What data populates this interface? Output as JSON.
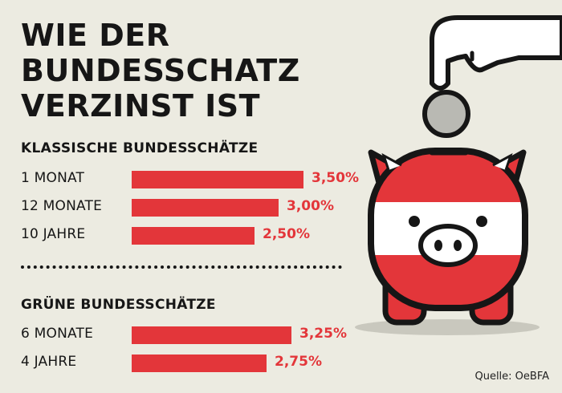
{
  "title_lines": [
    "WIE DER",
    "BUNDESSCHATZ",
    "VERZINST IST"
  ],
  "source": "Quelle: OeBFA",
  "colors": {
    "accent": "#e3363a",
    "text": "#161616",
    "background": "#ecebe1"
  },
  "chart_data": [
    {
      "type": "bar",
      "orientation": "horizontal",
      "title": "KLASSISCHE BUNDESSCHÄTZE",
      "categories": [
        "1 MONAT",
        "12 MONATE",
        "10 JAHRE"
      ],
      "values": [
        3.5,
        3.0,
        2.5
      ],
      "value_labels": [
        "3,50%",
        "3,00%",
        "2,50%"
      ],
      "unit": "%",
      "xlim": [
        0,
        3.5
      ]
    },
    {
      "type": "bar",
      "orientation": "horizontal",
      "title": "GRÜNE BUNDESSCHÄTZE",
      "categories": [
        "6 MONATE",
        "4 JAHRE"
      ],
      "values": [
        3.25,
        2.75
      ],
      "value_labels": [
        "3,25%",
        "2,75%"
      ],
      "unit": "%",
      "xlim": [
        0,
        3.5
      ]
    }
  ]
}
